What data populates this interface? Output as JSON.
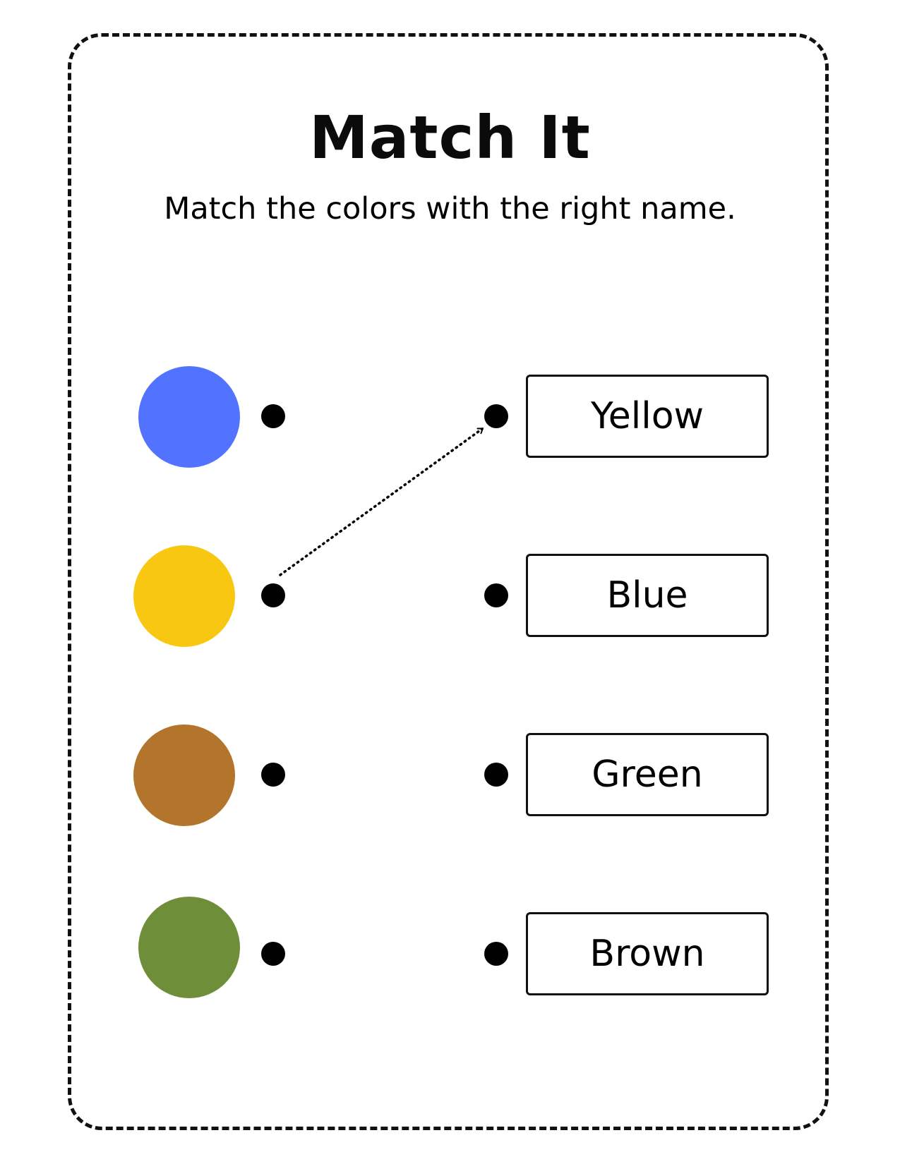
{
  "worksheet": {
    "title": "Match It",
    "instructions": "Match the colors with the right name."
  },
  "swatches": [
    {
      "color": "#5273FF"
    },
    {
      "color": "#F8C712"
    },
    {
      "color": "#B3742C"
    },
    {
      "color": "#6F8E3A"
    }
  ],
  "names": [
    {
      "label": "Yellow"
    },
    {
      "label": "Blue"
    },
    {
      "label": "Green"
    },
    {
      "label": "Brown"
    }
  ],
  "example_match": {
    "from_swatch": 2,
    "to_name": 1
  }
}
